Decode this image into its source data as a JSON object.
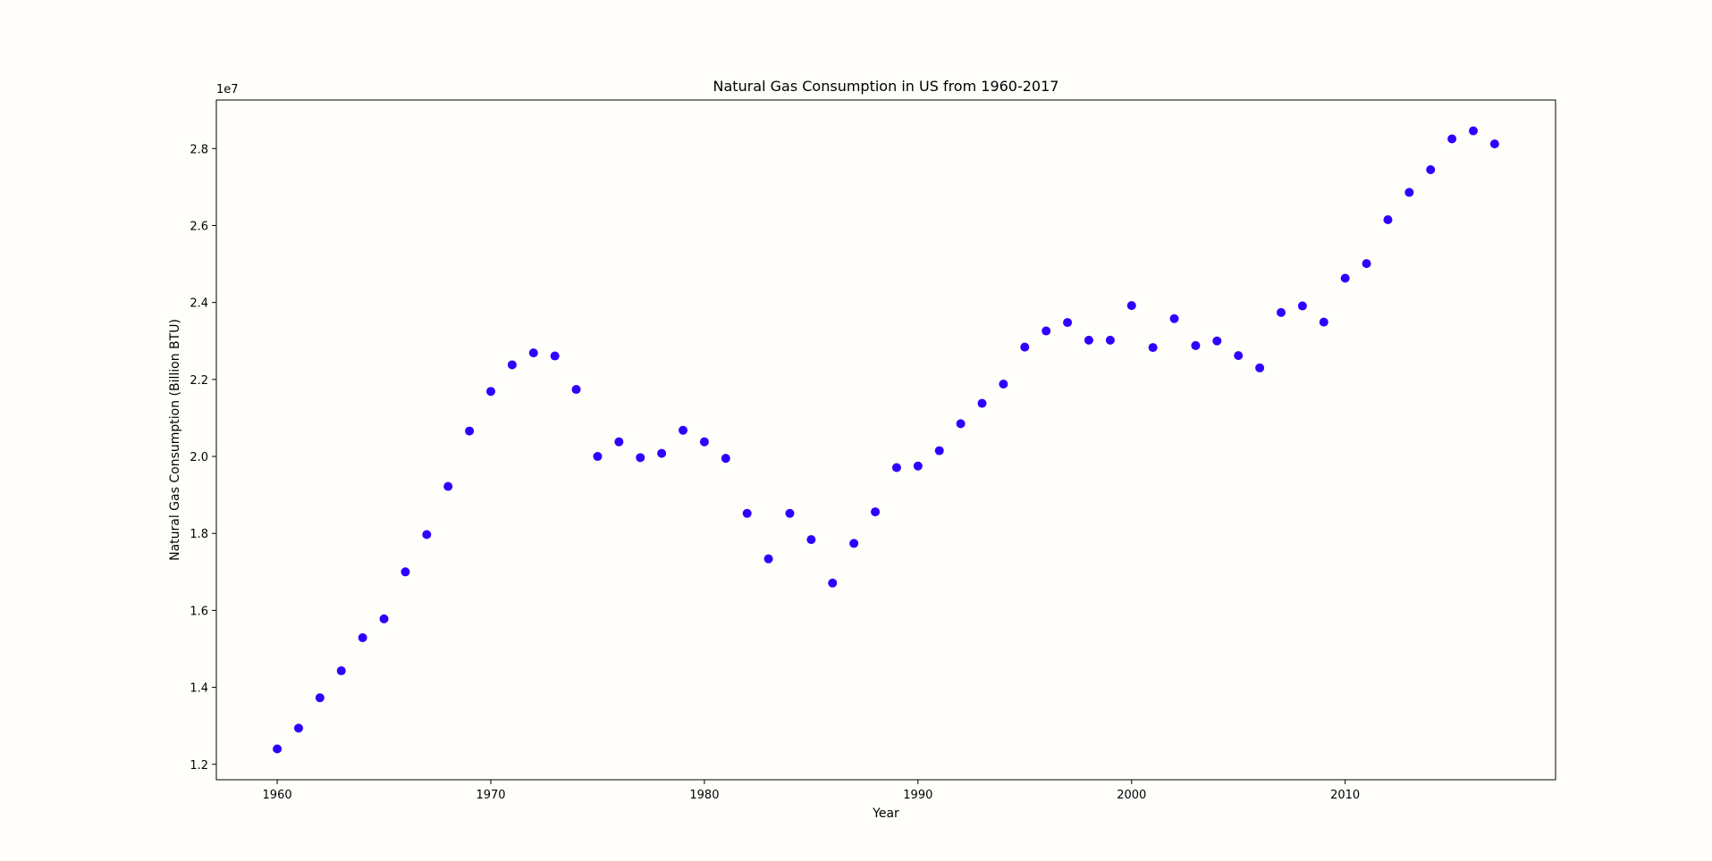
{
  "chart_data": {
    "type": "scatter",
    "title": "Natural Gas Consumption in US from 1960-2017",
    "xlabel": "Year",
    "ylabel": "Natural Gas Consumption (Billion BTU)",
    "y_offset_label": "1e7",
    "xlim": [
      1957.15,
      2019.85
    ],
    "ylim": [
      1.16,
      2.926
    ],
    "x_ticks": [
      1960,
      1970,
      1980,
      1990,
      2000,
      2010
    ],
    "y_ticks": [
      1.2,
      1.4,
      1.6,
      1.8,
      2.0,
      2.2,
      2.4,
      2.6,
      2.8
    ],
    "y_tick_labels": [
      "1.2",
      "1.4",
      "1.6",
      "1.8",
      "2.0",
      "2.2",
      "2.4",
      "2.6",
      "2.8"
    ],
    "marker_color": "#2e00ff",
    "grid": false,
    "points": [
      [
        1960,
        1.24
      ],
      [
        1961,
        1.294
      ],
      [
        1962,
        1.373
      ],
      [
        1963,
        1.443
      ],
      [
        1964,
        1.529
      ],
      [
        1965,
        1.578
      ],
      [
        1966,
        1.7
      ],
      [
        1967,
        1.797
      ],
      [
        1968,
        1.922
      ],
      [
        1969,
        2.066
      ],
      [
        1970,
        2.169
      ],
      [
        1971,
        2.238
      ],
      [
        1972,
        2.269
      ],
      [
        1973,
        2.261
      ],
      [
        1974,
        2.174
      ],
      [
        1975,
        2.0
      ],
      [
        1976,
        2.038
      ],
      [
        1977,
        1.997
      ],
      [
        1978,
        2.008
      ],
      [
        1979,
        2.068
      ],
      [
        1980,
        2.038
      ],
      [
        1981,
        1.995
      ],
      [
        1982,
        1.852
      ],
      [
        1983,
        1.734
      ],
      [
        1984,
        1.852
      ],
      [
        1985,
        1.784
      ],
      [
        1986,
        1.671
      ],
      [
        1987,
        1.774
      ],
      [
        1988,
        1.856
      ],
      [
        1989,
        1.971
      ],
      [
        1990,
        1.975
      ],
      [
        1991,
        2.015
      ],
      [
        1992,
        2.085
      ],
      [
        1993,
        2.138
      ],
      [
        1994,
        2.188
      ],
      [
        1995,
        2.284
      ],
      [
        1996,
        2.326
      ],
      [
        1997,
        2.348
      ],
      [
        1998,
        2.302
      ],
      [
        1999,
        2.302
      ],
      [
        2000,
        2.392
      ],
      [
        2001,
        2.283
      ],
      [
        2002,
        2.358
      ],
      [
        2003,
        2.288
      ],
      [
        2004,
        2.3
      ],
      [
        2005,
        2.262
      ],
      [
        2006,
        2.23
      ],
      [
        2007,
        2.374
      ],
      [
        2008,
        2.391
      ],
      [
        2009,
        2.349
      ],
      [
        2010,
        2.463
      ],
      [
        2011,
        2.501
      ],
      [
        2012,
        2.615
      ],
      [
        2013,
        2.686
      ],
      [
        2014,
        2.745
      ],
      [
        2015,
        2.825
      ],
      [
        2016,
        2.846
      ],
      [
        2017,
        2.812
      ]
    ]
  }
}
